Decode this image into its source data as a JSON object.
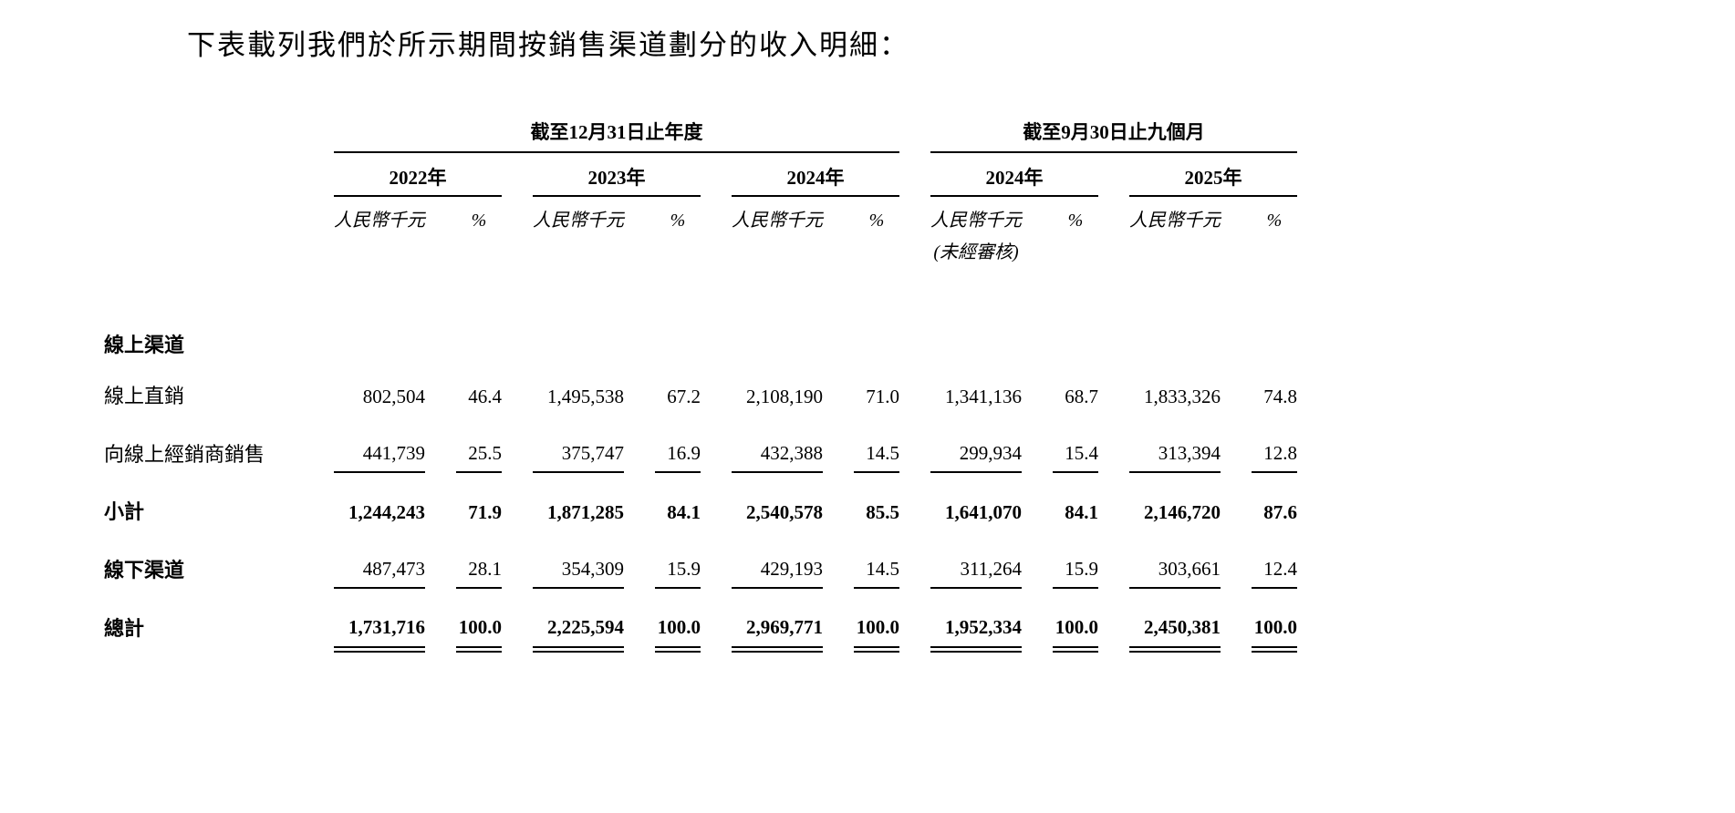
{
  "intro": "下表載列我們於所示期間按銷售渠道劃分的收入明細：",
  "table": {
    "period_groups": [
      {
        "label": "截至12月31日止年度",
        "years": [
          "2022年",
          "2023年",
          "2024年"
        ]
      },
      {
        "label": "截至9月30日止九個月",
        "years": [
          "2024年",
          "2025年"
        ]
      }
    ],
    "column_headers": {
      "amount": "人民幣千元",
      "percent": "%"
    },
    "unaudited_note": "(未經審核)",
    "rows": [
      {
        "label": "線上渠道",
        "type": "section-header",
        "values": []
      },
      {
        "label": "線上直銷",
        "values": [
          "802,504",
          "46.4",
          "1,495,538",
          "67.2",
          "2,108,190",
          "71.0",
          "1,341,136",
          "68.7",
          "1,833,326",
          "74.8"
        ]
      },
      {
        "label": "向線上經銷商銷售",
        "values": [
          "441,739",
          "25.5",
          "375,747",
          "16.9",
          "432,388",
          "14.5",
          "299,934",
          "15.4",
          "313,394",
          "12.8"
        ]
      },
      {
        "label": "小計",
        "values": [
          "1,244,243",
          "71.9",
          "1,871,285",
          "84.1",
          "2,540,578",
          "85.5",
          "1,641,070",
          "84.1",
          "2,146,720",
          "87.6"
        ]
      },
      {
        "label": "線下渠道",
        "values": [
          "487,473",
          "28.1",
          "354,309",
          "15.9",
          "429,193",
          "14.5",
          "311,264",
          "15.9",
          "303,661",
          "12.4"
        ]
      },
      {
        "label": "總計",
        "values": [
          "1,731,716",
          "100.0",
          "2,225,594",
          "100.0",
          "2,969,771",
          "100.0",
          "1,952,334",
          "100.0",
          "2,450,381",
          "100.0"
        ]
      }
    ]
  }
}
